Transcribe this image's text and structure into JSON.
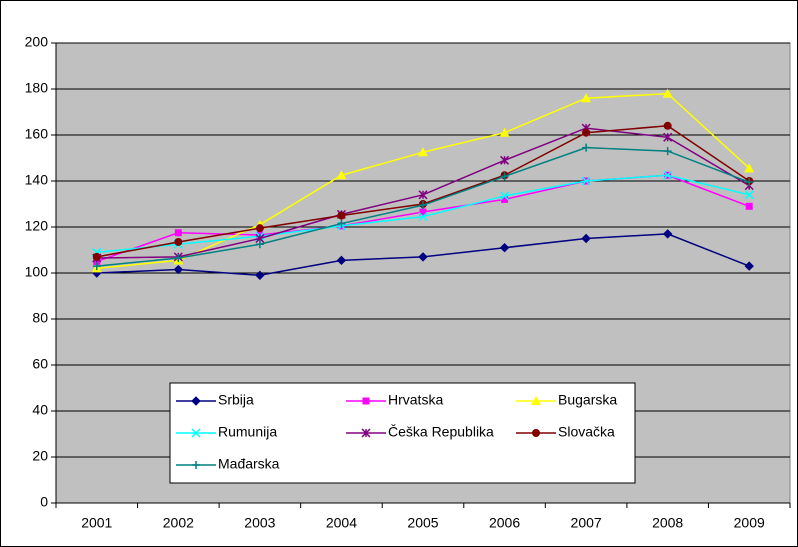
{
  "chart_data": {
    "type": "line",
    "categories": [
      "2001",
      "2002",
      "2003",
      "2004",
      "2005",
      "2006",
      "2007",
      "2008",
      "2009"
    ],
    "series": [
      {
        "name": "Srbija",
        "color": "#000080",
        "marker": "diamond",
        "values": [
          100,
          101.5,
          99,
          105.5,
          107,
          111,
          115,
          117,
          103
        ]
      },
      {
        "name": "Hrvatska",
        "color": "#ff00ff",
        "marker": "square",
        "values": [
          105,
          117.5,
          116.5,
          120.5,
          126.5,
          132,
          140,
          142.5,
          129
        ]
      },
      {
        "name": "Bugarska",
        "color": "#ffff00",
        "marker": "triangle",
        "values": [
          102,
          105.5,
          121,
          142.5,
          152.5,
          161,
          176,
          178,
          145.5
        ]
      },
      {
        "name": "Rumunija",
        "color": "#00ffff",
        "marker": "x",
        "values": [
          109,
          112.5,
          116,
          120.5,
          124.5,
          133.5,
          140,
          142.5,
          134
        ]
      },
      {
        "name": "Češka Republika",
        "color": "#800080",
        "marker": "asterisk",
        "values": [
          106.5,
          107,
          115,
          125.5,
          134,
          149,
          163,
          159,
          138
        ]
      },
      {
        "name": "Slovačka",
        "color": "#800000",
        "marker": "circle",
        "values": [
          107,
          113.5,
          119.5,
          125,
          130,
          142.5,
          161,
          164,
          140
        ]
      },
      {
        "name": "Mađarska",
        "color": "#008080",
        "marker": "plus",
        "values": [
          103,
          106.5,
          112.5,
          121.5,
          129.5,
          142,
          154.5,
          153,
          139.5
        ]
      }
    ],
    "ylim": [
      0,
      200
    ],
    "yticks": [
      0,
      20,
      40,
      60,
      80,
      100,
      120,
      140,
      160,
      180,
      200
    ],
    "grid": true,
    "legend": "bottom",
    "plot_background": "#c0c0c0"
  }
}
